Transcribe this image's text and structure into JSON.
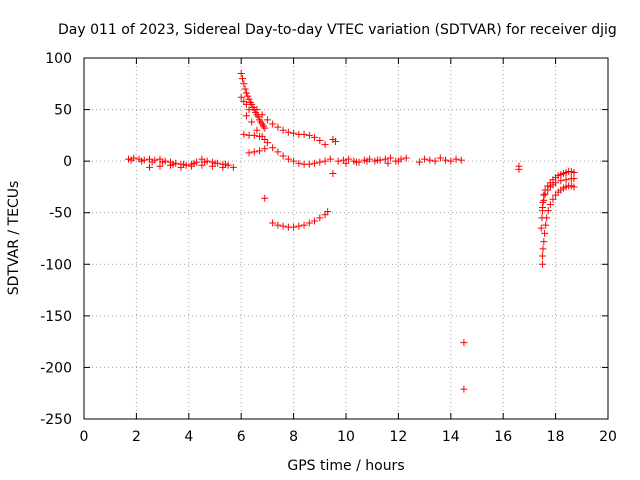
{
  "chart_data": {
    "type": "scatter",
    "title": "Day 011 of 2023, Sidereal Day-to-day VTEC variation (SDTVAR) for receiver djig",
    "xlabel": "GPS time / hours",
    "ylabel": "SDTVAR / TECUs",
    "xlim": [
      0,
      20
    ],
    "ylim": [
      -250,
      100
    ],
    "xticks": [
      0,
      2,
      4,
      6,
      8,
      10,
      12,
      14,
      16,
      18,
      20
    ],
    "yticks": [
      100,
      50,
      0,
      -50,
      -100,
      -150,
      -200,
      -250
    ],
    "grid": true,
    "marker": "+",
    "color": "#ff0000",
    "series": [
      {
        "x": [
          1.7,
          1.9,
          2.1,
          2.3,
          2.5,
          2.7,
          2.9,
          3.1,
          3.3,
          3.5,
          3.7,
          3.9,
          4.1,
          4.3,
          4.5,
          4.7,
          4.9,
          5.1,
          5.3,
          5.5,
          5.7,
          1.8,
          2.2,
          2.6,
          3.0,
          3.4,
          3.8,
          4.2,
          4.6,
          5.0,
          5.4,
          2.5,
          2.9,
          3.3,
          3.7,
          4.1,
          4.5,
          4.9,
          5.3,
          6.0,
          6.05,
          6.1,
          6.15,
          6.2,
          6.25,
          6.3,
          6.35,
          6.4,
          6.45,
          6.5,
          6.55,
          6.6,
          6.65,
          6.7,
          6.75,
          6.8,
          6.85,
          6.9,
          6.0,
          6.1,
          6.2,
          6.3,
          6.2,
          6.4,
          6.6,
          6.8,
          7.0,
          7.2,
          7.4,
          7.6,
          7.8,
          8.0,
          8.2,
          8.4,
          8.6,
          8.8,
          9.0,
          9.2,
          9.4,
          6.6,
          6.8,
          7.0,
          7.2,
          7.4,
          7.6,
          7.8,
          8.0,
          8.2,
          8.4,
          8.6,
          8.8,
          9.0,
          9.2,
          6.1,
          6.3,
          6.5,
          6.7,
          6.9,
          6.3,
          6.5,
          6.7,
          6.9,
          7.2,
          7.4,
          7.6,
          7.8,
          8.0,
          8.2,
          8.4,
          8.6,
          8.8,
          9.0,
          9.2,
          9.3,
          6.9,
          9.5,
          9.6,
          9.5,
          9.7,
          9.9,
          10.1,
          10.3,
          10.5,
          10.7,
          10.9,
          11.1,
          11.3,
          11.5,
          11.7,
          11.9,
          12.1,
          12.3,
          10.0,
          10.4,
          10.8,
          11.2,
          11.6,
          12.0,
          12.8,
          13.0,
          13.2,
          13.4,
          13.6,
          13.8,
          14.0,
          14.2,
          14.4,
          14.5,
          14.5,
          16.6,
          16.6,
          17.5,
          17.5,
          17.52,
          17.55,
          17.58,
          17.62,
          17.66,
          17.72,
          17.8,
          17.9,
          18.0,
          18.1,
          18.2,
          18.3,
          18.4,
          18.5,
          18.6,
          18.7,
          17.5,
          17.55,
          17.6,
          17.7,
          17.8,
          17.9,
          18.0,
          18.2,
          18.4,
          18.6,
          18.7,
          17.6,
          17.7,
          17.8,
          17.9,
          18.0,
          18.1,
          18.2,
          18.3,
          18.4,
          18.5,
          18.6,
          18.7,
          17.45,
          17.48,
          17.5,
          17.52,
          17.55
        ],
        "y": [
          2,
          3,
          2,
          1,
          2,
          1,
          2,
          0,
          -1,
          -2,
          -3,
          -4,
          -3,
          -1,
          2,
          0,
          -1,
          -2,
          -3,
          -4,
          -6,
          1,
          0,
          -1,
          -1,
          -3,
          -3,
          -2,
          -1,
          -2,
          -3,
          -6,
          -5,
          -4,
          -6,
          -5,
          -4,
          -5,
          -6,
          85,
          80,
          75,
          70,
          66,
          63,
          60,
          57,
          55,
          52,
          50,
          47,
          45,
          43,
          40,
          38,
          36,
          34,
          32,
          62,
          58,
          55,
          50,
          44,
          38,
          30,
          24,
          18,
          13,
          9,
          5,
          2,
          0,
          -2,
          -3,
          -3,
          -2,
          -1,
          0,
          2,
          50,
          45,
          40,
          36,
          33,
          30,
          28,
          27,
          26,
          26,
          25,
          23,
          20,
          16,
          26,
          25,
          25,
          24,
          21,
          8,
          9,
          10,
          12,
          -60,
          -62,
          -63,
          -64,
          -64,
          -63,
          -62,
          -60,
          -58,
          -55,
          -52,
          -49,
          -36,
          21,
          19,
          -12,
          0,
          1,
          2,
          0,
          -1,
          1,
          2,
          0,
          1,
          2,
          3,
          0,
          2,
          3,
          -2,
          -1,
          0,
          1,
          -2,
          0,
          -1,
          2,
          1,
          0,
          3,
          1,
          0,
          2,
          1,
          -176,
          -221,
          -5,
          -8,
          -100,
          -92,
          -85,
          -78,
          -70,
          -62,
          -55,
          -48,
          -42,
          -37,
          -33,
          -30,
          -28,
          -26,
          -25,
          -24,
          -24,
          -25,
          -45,
          -38,
          -32,
          -28,
          -25,
          -23,
          -21,
          -19,
          -18,
          -17,
          -17,
          -28,
          -24,
          -21,
          -18,
          -16,
          -14,
          -13,
          -12,
          -11,
          -10,
          -10,
          -11,
          -65,
          -55,
          -48,
          -40,
          -33
        ]
      }
    ]
  }
}
